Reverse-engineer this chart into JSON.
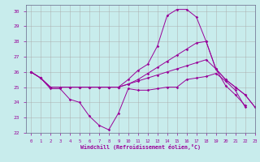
{
  "background_color": "#c8ecec",
  "grid_color": "#aaaaaa",
  "line_color": "#990099",
  "xlim": [
    -0.5,
    23
  ],
  "ylim": [
    22,
    30.4
  ],
  "xticks": [
    0,
    1,
    2,
    3,
    4,
    5,
    6,
    7,
    8,
    9,
    10,
    11,
    12,
    13,
    14,
    15,
    16,
    17,
    18,
    19,
    20,
    21,
    22,
    23
  ],
  "yticks": [
    22,
    23,
    24,
    25,
    26,
    27,
    28,
    29,
    30
  ],
  "xlabel": "Windchill (Refroidissement éolien,°C)",
  "lines": [
    {
      "x": [
        0,
        1,
        2,
        3,
        4,
        5,
        6,
        7,
        8,
        9,
        10,
        11,
        12,
        13,
        14,
        15,
        16,
        17,
        18,
        19,
        20,
        21,
        22
      ],
      "y": [
        26.0,
        25.6,
        24.9,
        24.9,
        24.2,
        24.0,
        23.1,
        22.5,
        22.2,
        23.3,
        24.9,
        24.8,
        24.8,
        24.9,
        25.0,
        25.0,
        25.5,
        25.6,
        25.7,
        25.9,
        25.4,
        24.8,
        23.7
      ]
    },
    {
      "x": [
        0,
        1,
        2,
        3,
        4,
        5,
        6,
        7,
        8,
        9,
        10,
        11,
        12,
        13,
        14,
        15,
        16,
        17,
        18,
        19,
        20,
        21,
        22,
        23
      ],
      "y": [
        26.0,
        25.6,
        25.0,
        25.0,
        25.0,
        25.0,
        25.0,
        25.0,
        25.0,
        25.0,
        25.2,
        25.4,
        25.6,
        25.8,
        26.0,
        26.2,
        26.4,
        26.6,
        26.8,
        26.2,
        25.5,
        25.0,
        24.5,
        23.7
      ]
    },
    {
      "x": [
        0,
        1,
        2,
        3,
        4,
        5,
        6,
        7,
        8,
        9,
        10,
        11,
        12,
        13,
        14,
        15,
        16,
        17,
        18,
        19,
        20,
        21,
        22,
        23
      ],
      "y": [
        26.0,
        25.6,
        25.0,
        25.0,
        25.0,
        25.0,
        25.0,
        25.0,
        25.0,
        25.0,
        25.2,
        25.5,
        25.9,
        26.3,
        26.7,
        27.1,
        27.5,
        27.9,
        28.0,
        26.2,
        25.5,
        25.0,
        24.5,
        23.7
      ]
    },
    {
      "x": [
        0,
        1,
        2,
        3,
        4,
        5,
        6,
        7,
        8,
        9,
        10,
        11,
        12,
        13,
        14,
        15,
        16,
        17,
        18,
        19,
        20,
        21,
        22
      ],
      "y": [
        26.0,
        25.6,
        25.0,
        25.0,
        25.0,
        25.0,
        25.0,
        25.0,
        25.0,
        25.0,
        25.5,
        26.1,
        26.5,
        27.7,
        29.7,
        30.1,
        30.1,
        29.6,
        28.0,
        26.2,
        25.1,
        24.5,
        23.8
      ]
    }
  ]
}
